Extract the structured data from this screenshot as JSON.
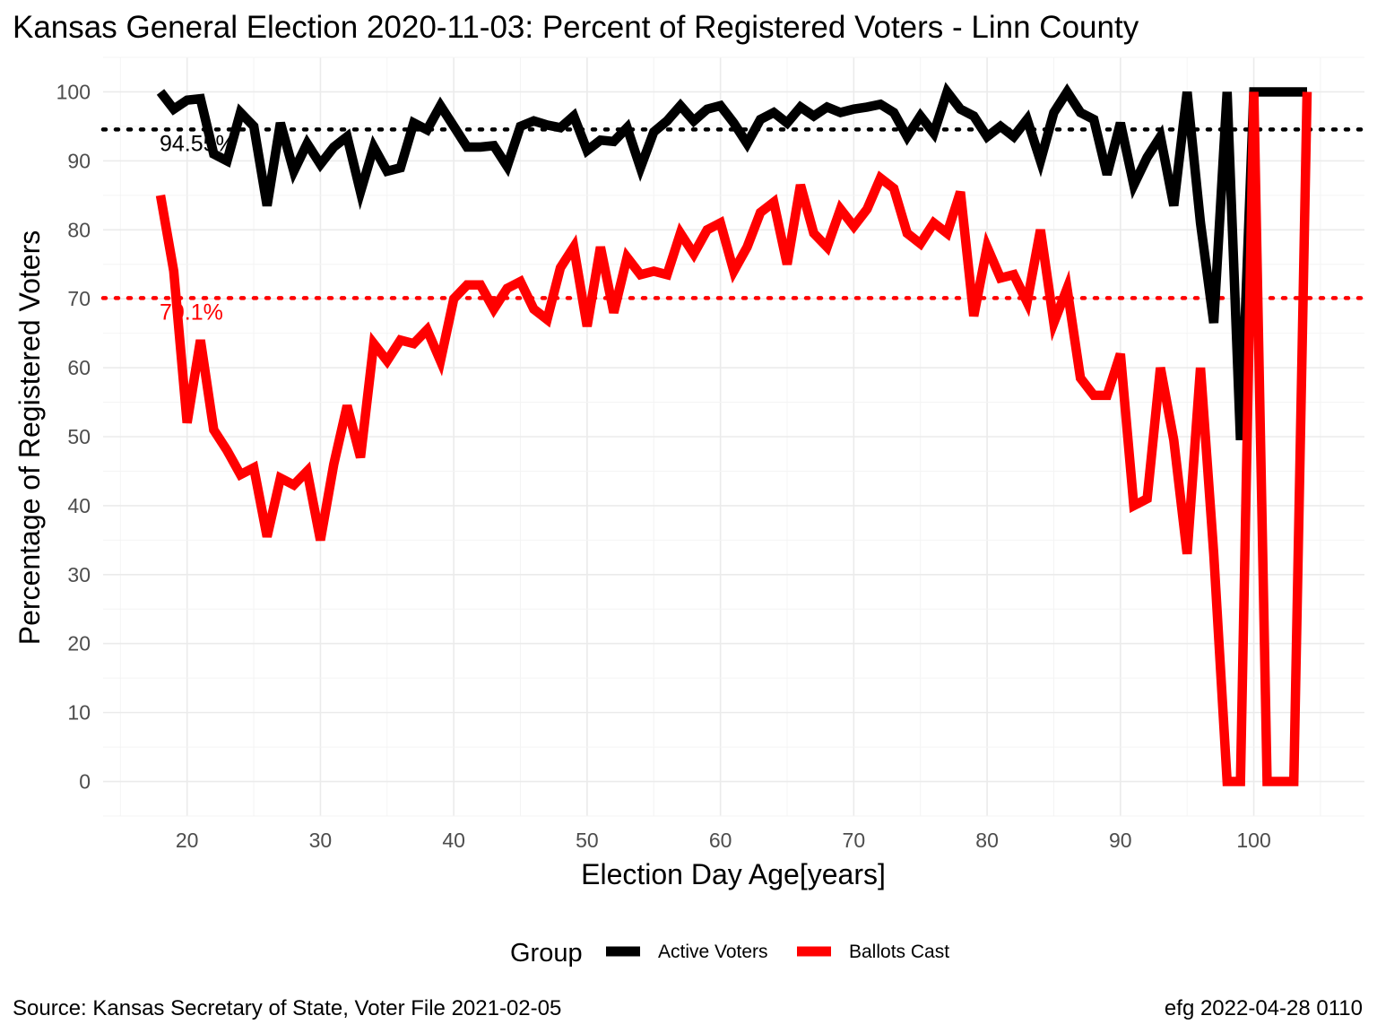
{
  "title": "Kansas General Election 2020-11-03:  Percent of Registered Voters - Linn County",
  "caption_left": "Source:  Kansas Secretary of State, Voter File  2021-02-05",
  "caption_right": "efg 2022-04-28 0110",
  "legend": {
    "title": "Group",
    "position": "bottom"
  },
  "chart_data": {
    "type": "line",
    "xlabel": "Election Day Age[years]",
    "ylabel": "Percentage of Registered Voters",
    "xlim": [
      13.7,
      108.3
    ],
    "ylim": [
      -5,
      105
    ],
    "x_ticks": [
      20,
      30,
      40,
      50,
      60,
      70,
      80,
      90,
      100
    ],
    "y_ticks": [
      0,
      10,
      20,
      30,
      40,
      50,
      60,
      70,
      80,
      90,
      100
    ],
    "grid": true,
    "x": [
      18,
      19,
      20,
      21,
      22,
      23,
      24,
      25,
      26,
      27,
      28,
      29,
      30,
      31,
      32,
      33,
      34,
      35,
      36,
      37,
      38,
      39,
      40,
      41,
      42,
      43,
      44,
      45,
      46,
      47,
      48,
      49,
      50,
      51,
      52,
      53,
      54,
      55,
      56,
      57,
      58,
      59,
      60,
      61,
      62,
      63,
      64,
      65,
      66,
      67,
      68,
      69,
      70,
      71,
      72,
      73,
      74,
      75,
      76,
      77,
      78,
      79,
      80,
      81,
      82,
      83,
      84,
      85,
      86,
      87,
      88,
      89,
      90,
      91,
      92,
      93,
      94,
      95,
      96,
      97,
      98,
      99,
      100,
      101,
      102,
      103,
      104
    ],
    "series": [
      {
        "name": "Active Voters",
        "color": "#000000",
        "values": [
          100,
          97.5,
          98.8,
          99,
          91,
          90,
          97,
          95,
          83.5,
          95.5,
          88.5,
          92.5,
          89.5,
          92,
          93.5,
          85.5,
          92,
          88.5,
          89,
          95.5,
          94.5,
          98,
          95,
          92,
          92,
          92.2,
          89.2,
          95,
          95.8,
          95.2,
          94.8,
          96.5,
          91.5,
          93,
          92.8,
          94.8,
          89,
          94.2,
          95.8,
          98,
          95.8,
          97.5,
          98,
          95.5,
          92.5,
          96,
          97,
          95.5,
          97.8,
          96.5,
          97.8,
          97,
          97.5,
          97.8,
          98.2,
          97,
          93.5,
          96.5,
          94,
          100,
          97.5,
          96.5,
          93.5,
          95,
          93.5,
          96,
          90,
          97,
          100,
          97,
          96,
          88,
          95.5,
          86.5,
          90.5,
          93.5,
          83.5,
          100,
          81,
          66.5,
          100,
          49.5,
          100,
          100,
          100,
          100,
          100
        ]
      },
      {
        "name": "Ballots Cast",
        "color": "#ff0000",
        "values": [
          85,
          74,
          52,
          64,
          51,
          48,
          44.5,
          45.5,
          35.5,
          44,
          43,
          45,
          35,
          46,
          54.5,
          47,
          63.5,
          61,
          64,
          63.5,
          65.5,
          61,
          70,
          72,
          72,
          68.5,
          71.5,
          72.5,
          68.5,
          67,
          74.5,
          77.5,
          66,
          77.5,
          68,
          76,
          73.5,
          74,
          73.5,
          79.5,
          76.5,
          80,
          81,
          74,
          77.5,
          82.5,
          84,
          75,
          86.5,
          79.5,
          77.5,
          83,
          80.5,
          83,
          87.5,
          86,
          79.5,
          78,
          81,
          79.5,
          85.5,
          67.5,
          77.5,
          73,
          73.5,
          69.5,
          80,
          66.5,
          71.5,
          58.5,
          56,
          56,
          62,
          40,
          41,
          60,
          49.5,
          33,
          60,
          33,
          0,
          0,
          100,
          0,
          0,
          0,
          100
        ]
      }
    ],
    "reference_lines": [
      {
        "label": "94.55%",
        "value": 94.55,
        "color": "#000000"
      },
      {
        "label": "70.1%",
        "value": 70.1,
        "color": "#ff0000"
      }
    ]
  }
}
